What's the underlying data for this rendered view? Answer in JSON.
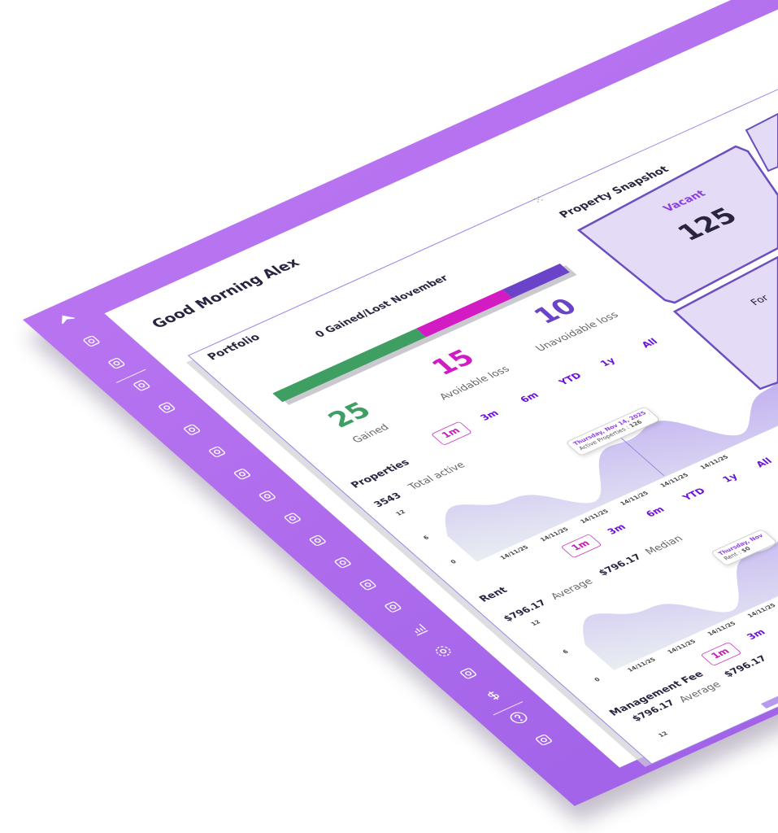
{
  "greeting": "Good Morning Alex",
  "colors": {
    "brand": "#a66be9",
    "gained": "#3f9e62",
    "avoidable": "#d21bc3",
    "unavoidable": "#6b43c9"
  },
  "sidebar": {
    "icons": [
      "logo-icon",
      "network-icon",
      "dashboard-icon",
      "document-icon",
      "clipboard-icon",
      "map-pin-icon",
      "key-icon",
      "file-icon",
      "certificate-icon",
      "tools-icon",
      "house-search-icon",
      "box-icon",
      "users-icon",
      "users-star-icon",
      "bar-chart-icon",
      "gear-icon",
      "calculator-icon",
      "dollar-icon",
      "help-icon",
      "lightbulb-icon"
    ]
  },
  "portfolio": {
    "title": "Portfolio",
    "subtitle": "0 Gained/Lost November",
    "gained": {
      "value": "25",
      "label": "Gained"
    },
    "avoidable": {
      "value": "15",
      "label": "Avoidable loss"
    },
    "unavoidable": {
      "value": "10",
      "label": "Unavoidable loss"
    },
    "shares": [
      50,
      30,
      20
    ]
  },
  "tabs": [
    "1m",
    "3m",
    "6m",
    "YTD",
    "1y",
    "All"
  ],
  "properties": {
    "title": "Properties",
    "value": "3543",
    "value_label": "Total active",
    "y_ticks": [
      "12",
      "6",
      "0"
    ],
    "x_ticks": [
      "14/11/25",
      "14/11/25",
      "14/11/25",
      "14/11/25",
      "14/11/25",
      "14/11/25"
    ],
    "tooltip": {
      "date": "Thursday, Nov 14, 2025",
      "text": "Active Properties :",
      "value": "126"
    }
  },
  "rent": {
    "title": "Rent",
    "avg_value": "$796.17",
    "avg_label": "Average",
    "median_value": "$796.17",
    "median_label": "Median",
    "y_ticks": [
      "12",
      "6",
      "0"
    ],
    "x_ticks": [
      "14/11/25",
      "14/11/25",
      "14/11/25",
      "14/11/25"
    ],
    "tooltip": {
      "date": "Thursday, Nov",
      "text": "Rent :",
      "value": "$0"
    }
  },
  "mgmt": {
    "title": "Management Fee",
    "avg_value": "$796.17",
    "avg_label": "Average",
    "median_value": "$796.17",
    "y_ticks": [
      "12"
    ]
  },
  "snapshot": {
    "title": "Property Snapshot",
    "cards": [
      {
        "label": "Vacant",
        "value": "125"
      },
      {
        "label": "For",
        "value": ""
      }
    ]
  }
}
